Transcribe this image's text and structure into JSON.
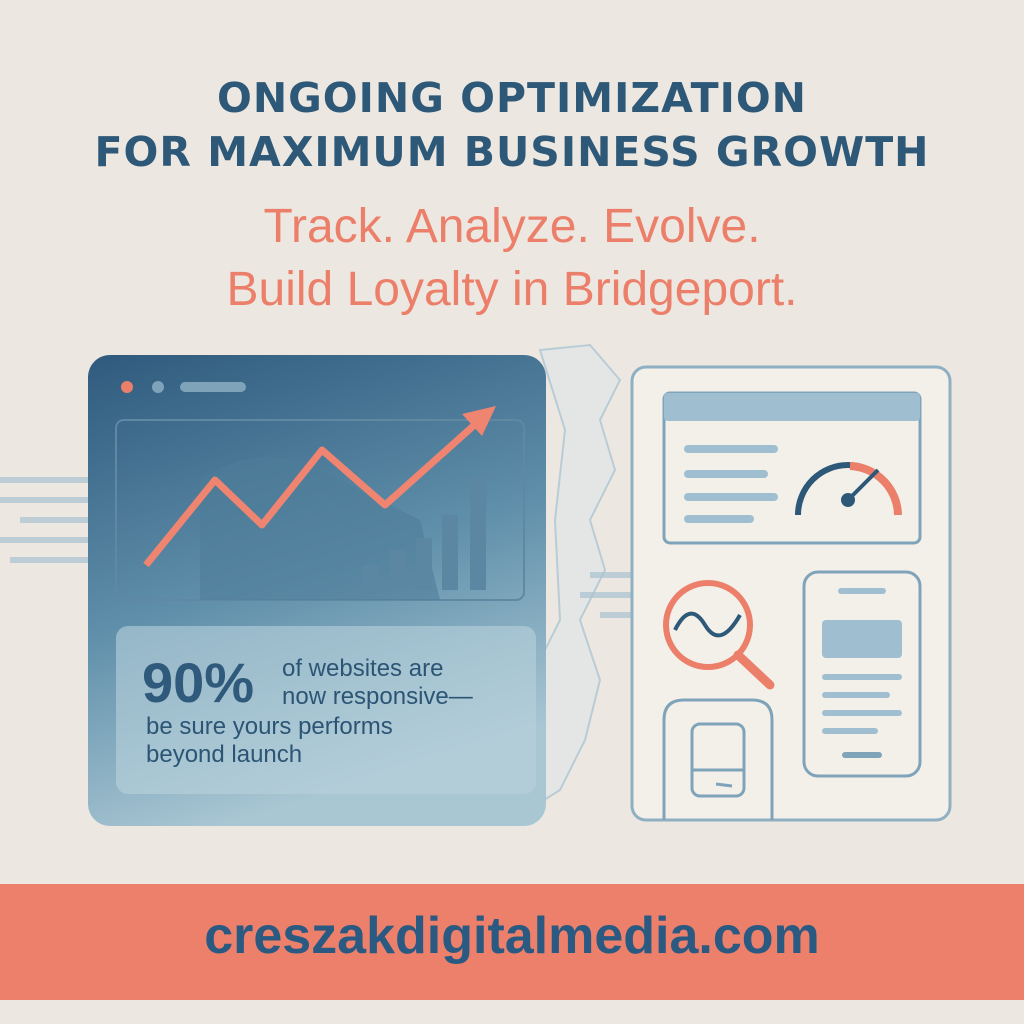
{
  "header": {
    "title_line1": "ONGOING OPTIMIZATION",
    "title_line2": "FOR MAXIMUM BUSINESS GROWTH",
    "subtitle_line1": "Track. Analyze. Evolve.",
    "subtitle_line2": "Build Loyalty in Bridgeport."
  },
  "stat": {
    "percent": "90%",
    "line1": "of websites are",
    "line2": "now responsive—",
    "line3": "be sure yours performs",
    "line4": "beyond launch"
  },
  "footer": {
    "url": "creszakdigitalmedia.com"
  },
  "colors": {
    "background": "#ece8e1",
    "navy": "#2e5878",
    "coral": "#ec7f6a",
    "light_blue": "#9fbfcd"
  },
  "icons": [
    "browser-window-icon",
    "trend-arrow-icon",
    "bar-chart-icon",
    "gauge-icon",
    "magnifier-icon",
    "smartphone-icon",
    "tablet-icon",
    "map-outline"
  ]
}
